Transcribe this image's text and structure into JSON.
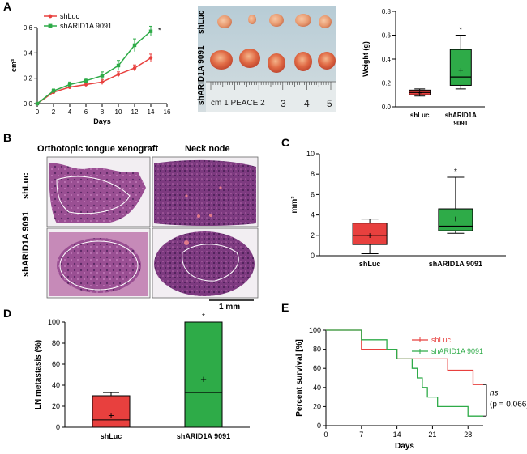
{
  "panels": {
    "A": "A",
    "B": "B",
    "C": "C",
    "D": "D",
    "E": "E"
  },
  "photo": {
    "row1_label": "shLuc",
    "row2_label": "shARID1A 9091",
    "ruler_text": "cm 1 PEACE 2",
    "ruler_numbers": [
      "3",
      "4",
      "5"
    ]
  },
  "histology": {
    "col1_title": "Orthotopic tongue xenograft",
    "col2_title": "Neck node",
    "row1_label": "shLuc",
    "row2_label": "shARID1A 9091",
    "scalebar": "1 mm"
  },
  "colors": {
    "red": "#e8403e",
    "green": "#2eab48"
  },
  "chart_data": [
    {
      "id": "A-growth",
      "type": "line",
      "xlabel": "Days",
      "ylabel": "cm³",
      "xlim": [
        0,
        16
      ],
      "ylim": [
        0,
        0.6
      ],
      "xticks": [
        "0",
        "2",
        "4",
        "6",
        "8",
        "10",
        "12",
        "14",
        "16"
      ],
      "yticks": [
        "0.0",
        "0.2",
        "0.4",
        "0.6"
      ],
      "x": [
        0,
        2,
        4,
        6,
        8,
        10,
        12,
        14
      ],
      "series": [
        {
          "name": "shLuc",
          "color": "#e8403e",
          "values": [
            0,
            0.09,
            0.13,
            0.15,
            0.17,
            0.23,
            0.28,
            0.36
          ],
          "err": [
            0,
            0.01,
            0.015,
            0.015,
            0.02,
            0.02,
            0.025,
            0.03
          ]
        },
        {
          "name": "shARID1A  9091",
          "color": "#2eab48",
          "values": [
            0,
            0.1,
            0.15,
            0.18,
            0.22,
            0.3,
            0.46,
            0.57
          ],
          "err": [
            0,
            0.015,
            0.02,
            0.02,
            0.03,
            0.04,
            0.05,
            0.04
          ]
        }
      ],
      "annotation": "*"
    },
    {
      "id": "A-weight",
      "type": "box",
      "ylabel": "Weight (g)",
      "ylim": [
        0,
        0.8
      ],
      "yticks": [
        "0.0",
        "0.2",
        "0.4",
        "0.6",
        "0.8"
      ],
      "categories": [
        "shLuc",
        "shARID1A\n9091"
      ],
      "boxes": [
        {
          "min": 0.09,
          "q1": 0.1,
          "median": 0.12,
          "q3": 0.14,
          "max": 0.15,
          "mean": 0.12,
          "color": "#e8403e"
        },
        {
          "min": 0.15,
          "q1": 0.18,
          "median": 0.25,
          "q3": 0.48,
          "max": 0.6,
          "mean": 0.31,
          "color": "#2eab48"
        }
      ],
      "annotation": "*"
    },
    {
      "id": "C-volume",
      "type": "box",
      "ylabel": "mm³",
      "ylim": [
        0,
        10
      ],
      "yticks": [
        "0",
        "2",
        "4",
        "6",
        "8",
        "10"
      ],
      "categories": [
        "shLuc",
        "shARID1A 9091"
      ],
      "boxes": [
        {
          "min": 0.2,
          "q1": 1.1,
          "median": 2.0,
          "q3": 3.2,
          "max": 3.6,
          "mean": 2.0,
          "color": "#e8403e"
        },
        {
          "min": 2.2,
          "q1": 2.45,
          "median": 2.9,
          "q3": 4.6,
          "max": 7.7,
          "mean": 3.6,
          "color": "#2eab48"
        }
      ],
      "annotation": "*"
    },
    {
      "id": "D-LN",
      "type": "bar",
      "ylabel": "LN metastasis (%)",
      "ylim": [
        0,
        100
      ],
      "yticks": [
        "0",
        "20",
        "40",
        "60",
        "80",
        "100"
      ],
      "categories": [
        "shLuc",
        "shARID1A 9091"
      ],
      "bars": [
        {
          "top": 30,
          "median": 7,
          "mean": 12,
          "max": 33,
          "color": "#e8403e"
        },
        {
          "top": 100,
          "median": 33,
          "mean": 46,
          "max": 100,
          "color": "#2eab48"
        }
      ],
      "annotation": "*"
    },
    {
      "id": "E-survival",
      "type": "line",
      "xlabel": "Days",
      "ylabel": "Percent survival [%]",
      "xlim": [
        0,
        31
      ],
      "ylim": [
        0,
        100
      ],
      "xticks": [
        "0",
        "7",
        "14",
        "21",
        "28"
      ],
      "yticks": [
        "0",
        "20",
        "40",
        "60",
        "80",
        "100"
      ],
      "series": [
        {
          "name": "shLuc",
          "color": "#e8403e",
          "steps": [
            [
              0,
              100
            ],
            [
              7,
              80
            ],
            [
              14,
              70
            ],
            [
              17,
              70
            ],
            [
              24,
              58
            ],
            [
              29,
              43
            ],
            [
              31,
              43
            ]
          ]
        },
        {
          "name": "shARID1A 9091",
          "color": "#2eab48",
          "steps": [
            [
              0,
              100
            ],
            [
              7,
              90
            ],
            [
              12,
              80
            ],
            [
              14,
              70
            ],
            [
              17,
              60
            ],
            [
              18,
              50
            ],
            [
              19,
              40
            ],
            [
              20,
              30
            ],
            [
              21,
              30
            ],
            [
              22,
              20
            ],
            [
              28,
              10
            ],
            [
              31,
              10
            ]
          ]
        }
      ],
      "annotation_ns": "ns",
      "annotation_p": "(p = 0.066)"
    }
  ]
}
